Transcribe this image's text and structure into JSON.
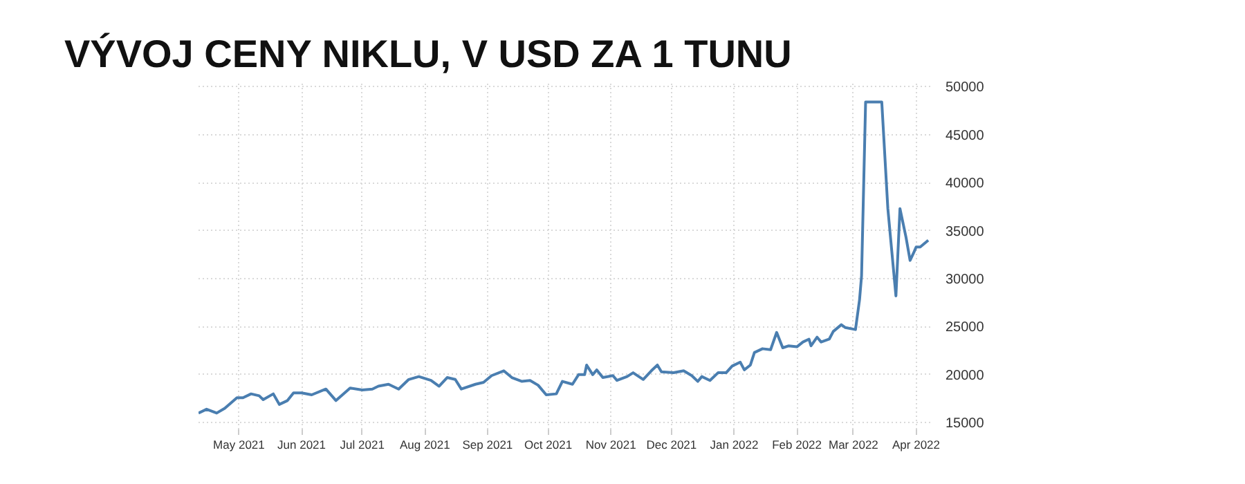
{
  "chart_data": {
    "type": "line",
    "title": "VÝVOJ CENY NIKLU, V USD ZA 1 TUNU",
    "x": [
      "2021-04-11",
      "2021-04-15",
      "2021-04-20",
      "2021-04-24",
      "2021-04-30",
      "2021-05-03",
      "2021-05-07",
      "2021-05-11",
      "2021-05-13",
      "2021-05-18",
      "2021-05-21",
      "2021-05-25",
      "2021-05-28",
      "2021-06-01",
      "2021-06-06",
      "2021-06-13",
      "2021-06-18",
      "2021-06-25",
      "2021-07-01",
      "2021-07-06",
      "2021-07-09",
      "2021-07-14",
      "2021-07-19",
      "2021-07-24",
      "2021-07-29",
      "2021-08-04",
      "2021-08-08",
      "2021-08-12",
      "2021-08-16",
      "2021-08-19",
      "2021-08-26",
      "2021-08-30",
      "2021-09-03",
      "2021-09-09",
      "2021-09-13",
      "2021-09-18",
      "2021-09-22",
      "2021-09-26",
      "2021-09-30",
      "2021-10-05",
      "2021-10-08",
      "2021-10-13",
      "2021-10-16",
      "2021-10-19",
      "2021-10-20",
      "2021-10-23",
      "2021-10-25",
      "2021-10-28",
      "2021-11-02",
      "2021-11-04",
      "2021-11-09",
      "2021-11-12",
      "2021-11-17",
      "2021-11-21",
      "2021-11-24",
      "2021-11-26",
      "2021-12-02",
      "2021-12-07",
      "2021-12-11",
      "2021-12-14",
      "2021-12-16",
      "2021-12-20",
      "2021-12-24",
      "2021-12-28",
      "2021-12-31",
      "2022-01-04",
      "2022-01-06",
      "2022-01-09",
      "2022-01-11",
      "2022-01-15",
      "2022-01-19",
      "2022-01-22",
      "2022-01-25",
      "2022-01-28",
      "2022-02-01",
      "2022-02-04",
      "2022-02-07",
      "2022-02-08",
      "2022-02-11",
      "2022-02-13",
      "2022-02-17",
      "2022-02-19",
      "2022-02-23",
      "2022-02-25",
      "2022-03-02",
      "2022-03-04",
      "2022-03-05",
      "2022-03-07",
      "2022-03-15",
      "2022-03-18",
      "2022-03-22",
      "2022-03-24",
      "2022-03-27",
      "2022-03-29",
      "2022-03-31",
      "2022-04-01",
      "2022-04-03",
      "2022-04-07"
    ],
    "series": [
      {
        "color": "#4a7eb0",
        "values": [
          16000,
          16400,
          16000,
          16500,
          17600,
          17600,
          18000,
          17800,
          17400,
          18000,
          16900,
          17300,
          18100,
          18100,
          17900,
          18500,
          17300,
          18600,
          18400,
          18500,
          18800,
          19000,
          18500,
          19500,
          19800,
          19400,
          18800,
          19700,
          19500,
          18500,
          19000,
          19200,
          19900,
          20400,
          19700,
          19300,
          19400,
          18900,
          17900,
          18000,
          19300,
          19000,
          20000,
          20000,
          21000,
          20000,
          20500,
          19700,
          19900,
          19400,
          19800,
          20200,
          19500,
          20400,
          21000,
          20300,
          20200,
          20400,
          19900,
          19300,
          19800,
          19400,
          20200,
          20200,
          20900,
          21300,
          20500,
          21000,
          22300,
          22700,
          22600,
          24400,
          22800,
          23000,
          22900,
          23400,
          23700,
          23000,
          23900,
          23400,
          23700,
          24500,
          25200,
          24900,
          24700,
          27800,
          30300,
          48400,
          48400,
          37300,
          28200,
          37300,
          34300,
          31900,
          32800,
          33300,
          33300,
          34000
        ]
      }
    ],
    "xlim": [
      "2021-04-11",
      "2022-04-08"
    ],
    "xticks": [
      {
        "value": "2021-05-01",
        "label": "May 2021"
      },
      {
        "value": "2021-06-01",
        "label": "Jun 2021"
      },
      {
        "value": "2021-07-01",
        "label": "Jul 2021"
      },
      {
        "value": "2021-08-01",
        "label": "Aug 2021"
      },
      {
        "value": "2021-09-01",
        "label": "Sep 2021"
      },
      {
        "value": "2021-10-01",
        "label": "Oct 2021"
      },
      {
        "value": "2021-11-01",
        "label": "Nov 2021"
      },
      {
        "value": "2021-12-01",
        "label": "Dec 2021"
      },
      {
        "value": "2022-01-01",
        "label": "Jan 2022"
      },
      {
        "value": "2022-02-01",
        "label": "Feb 2022"
      },
      {
        "value": "2022-03-01",
        "label": "Mar 2022"
      },
      {
        "value": "2022-04-01",
        "label": "Apr 2022"
      }
    ],
    "ylim": [
      14300,
      50600
    ],
    "yticks": [
      15000,
      20000,
      25000,
      30000,
      35000,
      40000,
      45000,
      50000
    ],
    "grid": true,
    "marker": "none",
    "line_style": "solid"
  }
}
